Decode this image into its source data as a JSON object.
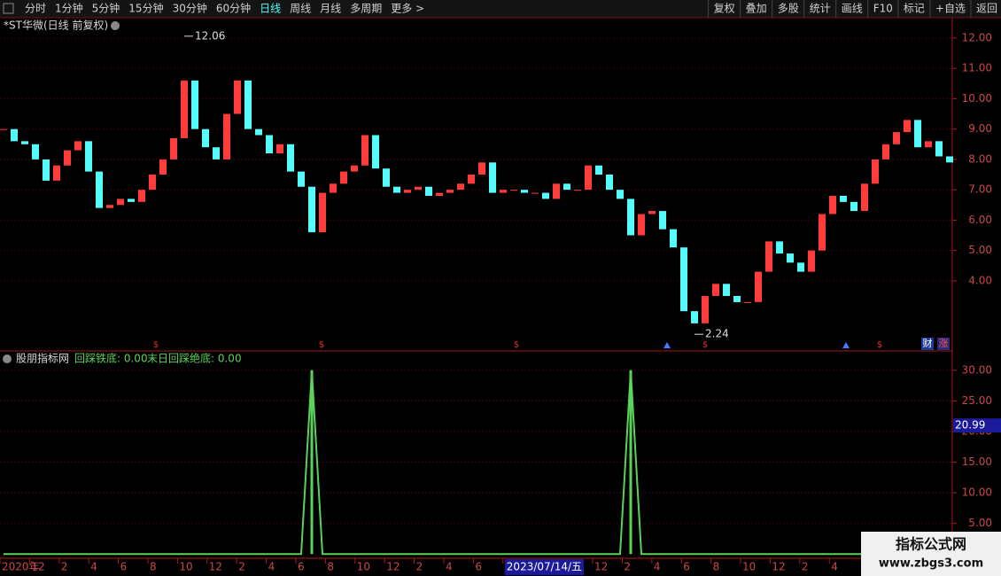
{
  "toolbar": {
    "left": [
      "分时",
      "1分钟",
      "5分钟",
      "15分钟",
      "30分钟",
      "60分钟",
      "日线",
      "周线",
      "月线",
      "多周期",
      "更多 >"
    ],
    "active": "日线",
    "right": [
      "复权",
      "叠加",
      "多股",
      "统计",
      "画线",
      "F10",
      "标记",
      "+自选",
      "返回"
    ]
  },
  "chart_data": [
    {
      "type": "candle",
      "title": "*ST华微(日线 前复权)",
      "values": [
        9.0,
        8.6,
        8.5,
        8.0,
        7.3,
        7.8,
        8.3,
        8.6,
        7.6,
        6.4,
        6.5,
        6.7,
        6.6,
        7.0,
        7.5,
        8.0,
        8.7,
        10.6,
        9.0,
        8.4,
        8.0,
        9.5,
        10.6,
        9.0,
        8.8,
        8.2,
        8.5,
        7.6,
        7.1,
        5.6,
        6.9,
        7.2,
        7.6,
        7.8,
        8.8,
        7.7,
        7.1,
        6.9,
        7.0,
        7.1,
        6.8,
        6.9,
        7.0,
        7.2,
        7.5,
        7.9,
        6.9,
        7.0,
        7.0,
        6.9,
        6.9,
        6.7,
        7.2,
        7.0,
        7.0,
        7.8,
        7.5,
        7.0,
        6.7,
        5.5,
        6.2,
        6.3,
        5.7,
        5.1,
        3.0,
        2.6,
        3.5,
        3.9,
        3.5,
        3.3,
        3.3,
        4.3,
        5.3,
        4.9,
        4.6,
        4.3,
        5.0,
        6.2,
        6.8,
        6.6,
        6.3,
        7.2,
        8.0,
        8.5,
        8.9,
        9.3,
        8.4,
        8.6,
        8.1,
        7.9
      ],
      "up_color": "#ff3c3c",
      "down_color": "#54fcfc",
      "ylim": [
        1.72,
        12.61
      ],
      "yticks": [
        {
          "value": 4,
          "label": "4.00"
        },
        {
          "value": 5,
          "label": "5.00"
        },
        {
          "value": 6,
          "label": "6.00"
        },
        {
          "value": 7,
          "label": "7.00"
        },
        {
          "value": 8,
          "label": "8.00"
        },
        {
          "value": 9,
          "label": "9.00"
        },
        {
          "value": 10,
          "label": "10.00"
        },
        {
          "value": 11,
          "label": "11.00"
        },
        {
          "value": 12,
          "label": "12.00"
        }
      ],
      "annotations": [
        {
          "value": 12.06,
          "label": "12.06"
        },
        {
          "value": 2.24,
          "label": "2.24"
        }
      ],
      "badges": [
        "财",
        "涨"
      ]
    },
    {
      "type": "indicator",
      "title": "股朋指标网",
      "legend": [
        "回踩铁底: 0.00",
        "末日回踩绝底: 0.00"
      ],
      "values": [
        0,
        0,
        0,
        0,
        0,
        0,
        0,
        0,
        0,
        0,
        0,
        0,
        0,
        0,
        0,
        0,
        0,
        0,
        0,
        0,
        0,
        0,
        0,
        0,
        0,
        0,
        0,
        0,
        0,
        30,
        0,
        0,
        0,
        0,
        0,
        0,
        0,
        0,
        0,
        0,
        0,
        0,
        0,
        0,
        0,
        0,
        0,
        0,
        0,
        0,
        0,
        0,
        0,
        0,
        0,
        0,
        0,
        0,
        0,
        30,
        0,
        0,
        0,
        0,
        0,
        0,
        0,
        0,
        0,
        0,
        0,
        0,
        0,
        0,
        0,
        0,
        0,
        0,
        0,
        0,
        0,
        0,
        0,
        0,
        0,
        0,
        0,
        0,
        0,
        0
      ],
      "color": "#5ad25a",
      "ylim": [
        -0.4,
        32.0
      ],
      "yticks": [
        {
          "value": 5,
          "label": "5.00"
        },
        {
          "value": 10,
          "label": "10.00"
        },
        {
          "value": 15,
          "label": "15.00"
        },
        {
          "value": 20,
          "label": "20.00"
        },
        {
          "value": 25,
          "label": "25.00"
        },
        {
          "value": 30,
          "label": "30.00"
        }
      ],
      "cursor": {
        "value": 20.99,
        "label": "20.99"
      }
    }
  ],
  "x_axis": {
    "labels": [
      "2020年",
      "12",
      "2",
      "4",
      "6",
      "8",
      "10",
      "12",
      "2",
      "4",
      "6",
      "8",
      "10",
      "12",
      "2",
      "4",
      "6",
      "2023/07/14/五",
      "12",
      "2",
      "4",
      "6",
      "8",
      "10",
      "12",
      "2",
      "4"
    ],
    "highlight": "2023/07/14/五"
  },
  "watermark": {
    "title": "指标公式网",
    "url": "www.zbgs3.com"
  }
}
